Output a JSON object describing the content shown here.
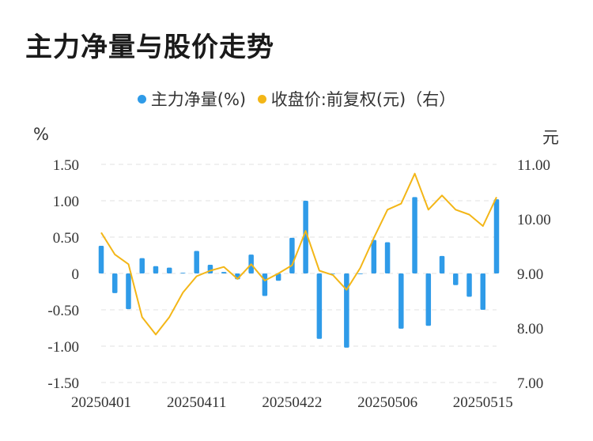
{
  "title": "主力净量与股价走势",
  "legend": [
    {
      "label": "主力净量(%)",
      "color": "#2f9be8"
    },
    {
      "label": "收盘价:前复权(元)（右）",
      "color": "#f3b617"
    }
  ],
  "left_unit": "%",
  "right_unit": "元",
  "chart_data": {
    "type": "bar+line",
    "left_axis": {
      "ticks": [
        "1.50",
        "1.00",
        "0.50",
        "0",
        "-0.50",
        "-1.00",
        "-1.50"
      ],
      "ylim": [
        -1.5,
        1.5
      ]
    },
    "right_axis": {
      "ticks": [
        "11.00",
        "10.00",
        "9.00",
        "8.00",
        "7.00"
      ],
      "ylim": [
        7.0,
        11.0
      ]
    },
    "x_tick_labels": [
      "20250401",
      "20250411",
      "20250422",
      "20250506",
      "20250515"
    ],
    "x_tick_indices": [
      0,
      7,
      14,
      21,
      28
    ],
    "bar_color": "#2f9be8",
    "line_color": "#f3b617",
    "series": [
      {
        "name": "主力净量(%)",
        "type": "bar",
        "values": [
          0.38,
          -0.27,
          -0.49,
          0.21,
          0.1,
          0.08,
          0.01,
          0.31,
          0.12,
          0.02,
          -0.08,
          0.26,
          -0.31,
          -0.1,
          0.49,
          1.0,
          -0.9,
          0.0,
          -1.02,
          -0.01,
          0.46,
          0.43,
          -0.76,
          1.05,
          -0.72,
          0.24,
          -0.16,
          -0.32,
          -0.5,
          1.02
        ]
      },
      {
        "name": "收盘价:前复权(元)（右）",
        "type": "line",
        "values": [
          9.75,
          9.35,
          9.17,
          8.2,
          7.88,
          8.2,
          8.65,
          8.95,
          9.05,
          9.12,
          8.9,
          9.17,
          8.87,
          9.0,
          9.15,
          9.78,
          9.05,
          8.97,
          8.7,
          9.1,
          9.65,
          10.17,
          10.28,
          10.83,
          10.17,
          10.43,
          10.17,
          10.08,
          9.87,
          10.4
        ]
      }
    ]
  }
}
